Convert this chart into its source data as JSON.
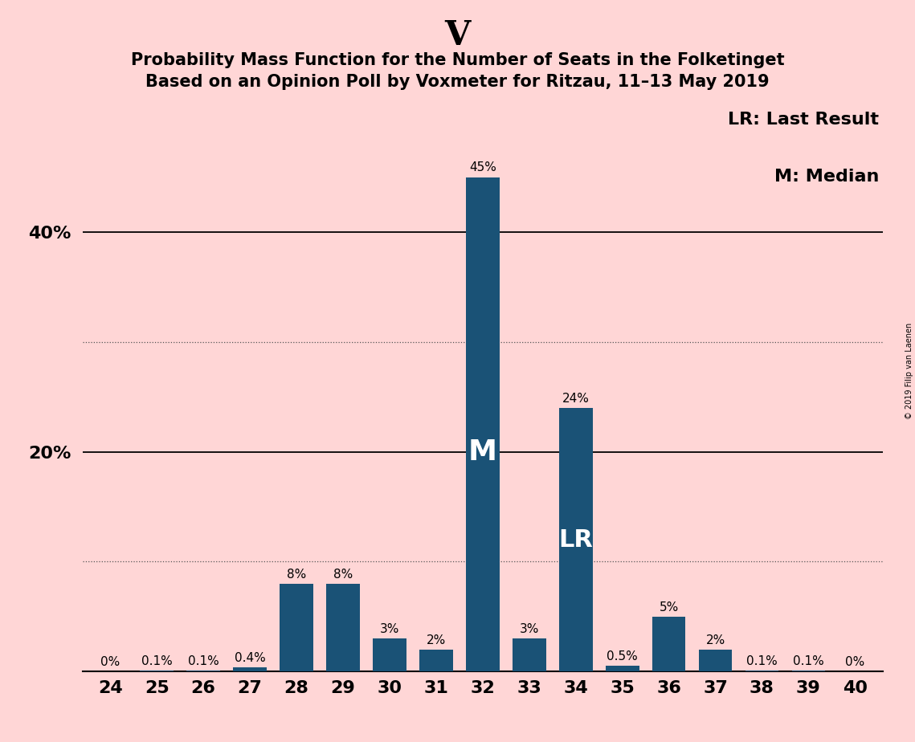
{
  "title": "V",
  "subtitle1": "Probability Mass Function for the Number of Seats in the Folketinget",
  "subtitle2": "Based on an Opinion Poll by Voxmeter for Ritzau, 11–13 May 2019",
  "categories": [
    24,
    25,
    26,
    27,
    28,
    29,
    30,
    31,
    32,
    33,
    34,
    35,
    36,
    37,
    38,
    39,
    40
  ],
  "values": [
    0.0,
    0.1,
    0.1,
    0.4,
    8.0,
    8.0,
    3.0,
    2.0,
    45.0,
    3.0,
    24.0,
    0.5,
    5.0,
    2.0,
    0.1,
    0.1,
    0.0
  ],
  "labels": [
    "0%",
    "0.1%",
    "0.1%",
    "0.4%",
    "8%",
    "8%",
    "3%",
    "2%",
    "45%",
    "3%",
    "24%",
    "0.5%",
    "5%",
    "2%",
    "0.1%",
    "0.1%",
    "0%"
  ],
  "bar_color": "#1a5276",
  "background_color": "#ffd6d6",
  "median_bar": 32,
  "last_result_bar": 34,
  "legend_text1": "LR: Last Result",
  "legend_text2": "M: Median",
  "copyright_text": "© 2019 Filip van Laenen",
  "ylim": [
    0,
    52
  ],
  "ytick_vals": [
    20,
    40
  ],
  "ytick_labels": [
    "20%",
    "40%"
  ],
  "dotted_lines": [
    10,
    30
  ],
  "solid_lines": [
    20,
    40
  ],
  "title_fontsize": 30,
  "subtitle_fontsize": 15,
  "tick_label_fontsize": 16,
  "bar_label_fontsize": 11,
  "legend_fontsize": 16
}
